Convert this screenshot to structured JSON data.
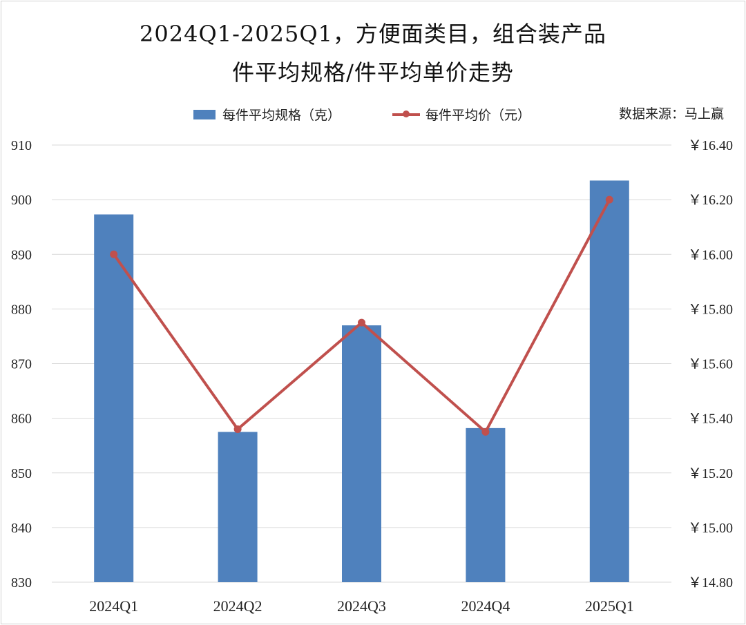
{
  "chart_data": {
    "type": "bar+line",
    "title_line1": "2024Q1-2025Q1，方便面类目，组合装产品",
    "title_line2": "件平均规格/件平均单价走势",
    "source": "数据来源：马上赢",
    "categories": [
      "2024Q1",
      "2024Q2",
      "2024Q3",
      "2024Q4",
      "2025Q1"
    ],
    "series": [
      {
        "name": "每件平均规格（克）",
        "type": "bar",
        "axis": "left",
        "color": "#4F81BD",
        "values": [
          897.3,
          857.5,
          877.0,
          858.2,
          903.5
        ]
      },
      {
        "name": "每件平均价（元）",
        "type": "line",
        "axis": "right",
        "color": "#C0504D",
        "values": [
          16.0,
          15.36,
          15.75,
          15.35,
          16.2
        ]
      }
    ],
    "y_left": {
      "min": 830,
      "max": 910,
      "step": 10,
      "ticks": [
        "910",
        "900",
        "890",
        "880",
        "870",
        "860",
        "850",
        "840",
        "830"
      ]
    },
    "y_right": {
      "min": 14.8,
      "max": 16.4,
      "step": 0.2,
      "ticks": [
        "￥16.40",
        "￥16.20",
        "￥16.00",
        "￥15.80",
        "￥15.60",
        "￥15.40",
        "￥15.20",
        "￥15.00",
        "￥14.80"
      ]
    },
    "grid": true,
    "legend_position": "top"
  }
}
